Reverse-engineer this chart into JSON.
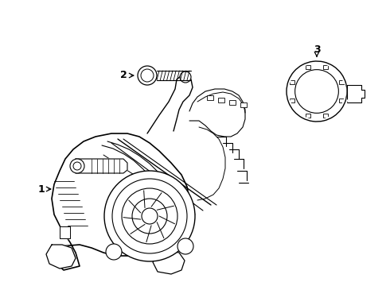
{
  "background_color": "#ffffff",
  "line_color": "#000000",
  "line_width": 0.8,
  "label_1": "1",
  "label_2": "2",
  "label_3": "3",
  "fig_width": 4.9,
  "fig_height": 3.6,
  "dpi": 100
}
